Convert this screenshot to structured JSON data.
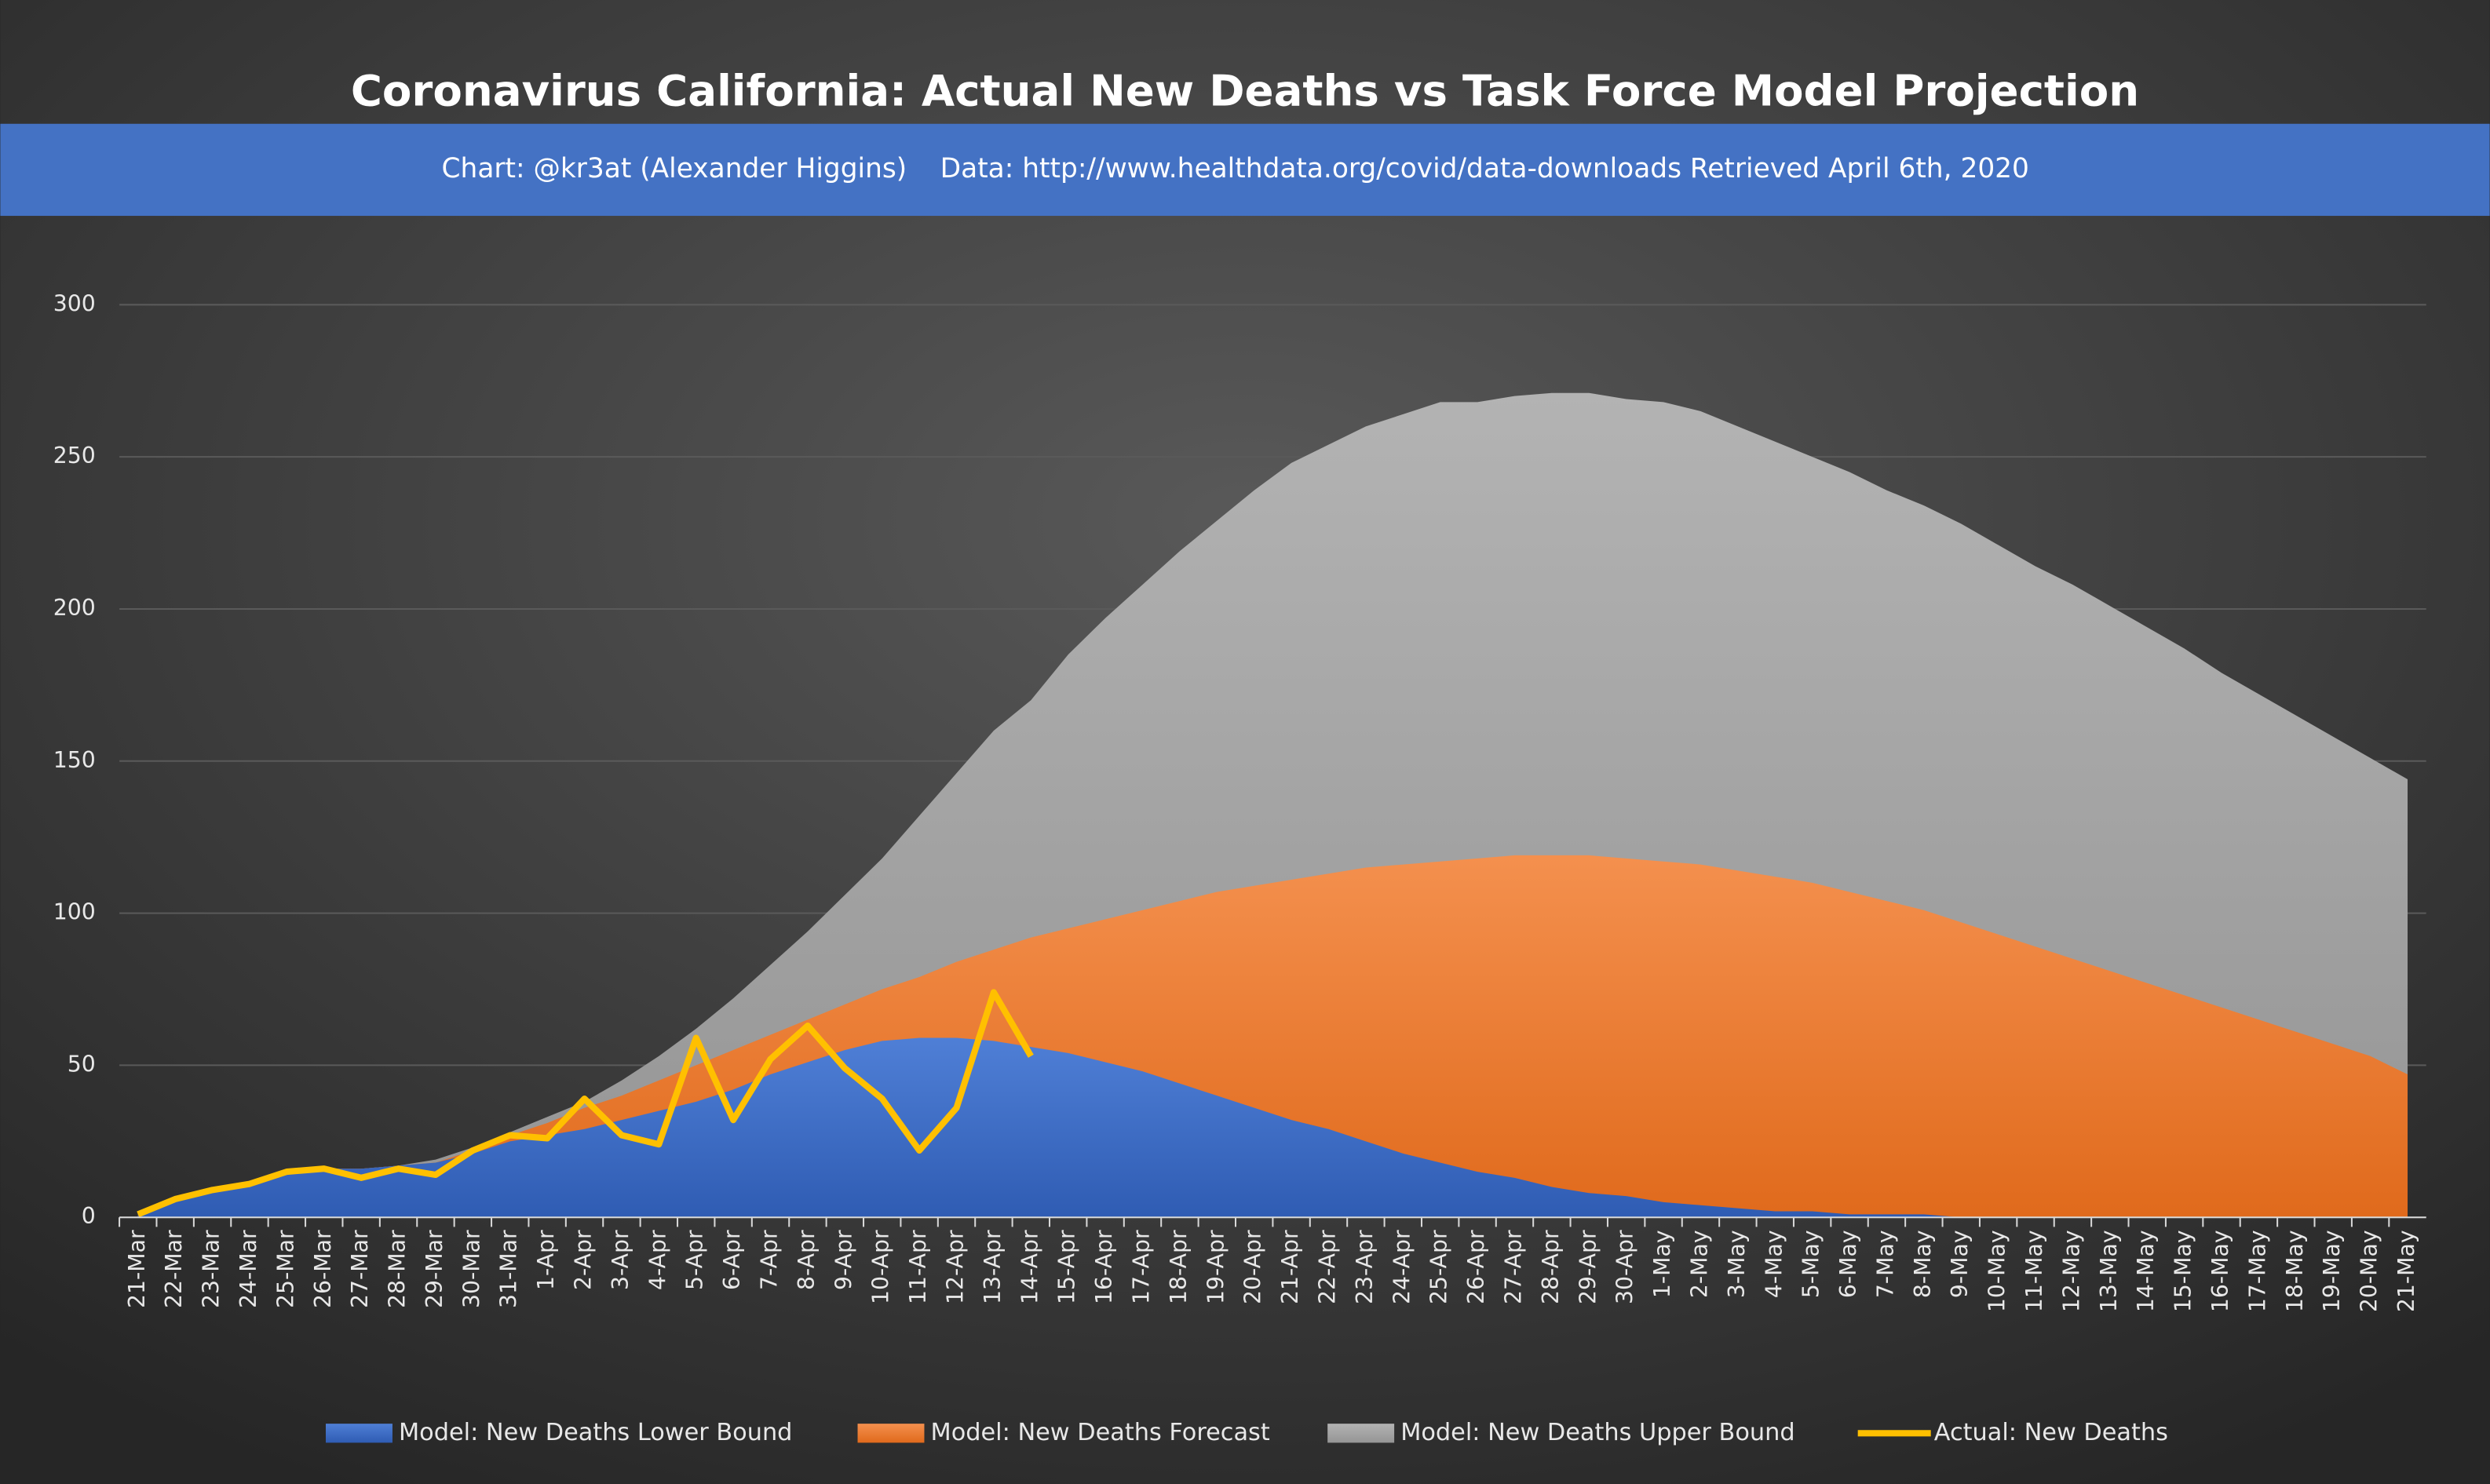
{
  "chart_data": {
    "type": "area",
    "title": "Coronavirus California: Actual New Deaths vs Task Force Model Projection",
    "subtitle": "Chart: @kr3at (Alexander Higgins)",
    "source": "Data: http://www.healthdata.org/covid/data-downloads Retrieved April 6th, 2020",
    "categories": [
      "21-Mar",
      "22-Mar",
      "23-Mar",
      "24-Mar",
      "25-Mar",
      "26-Mar",
      "27-Mar",
      "28-Mar",
      "29-Mar",
      "30-Mar",
      "31-Mar",
      "1-Apr",
      "2-Apr",
      "3-Apr",
      "4-Apr",
      "5-Apr",
      "6-Apr",
      "7-Apr",
      "8-Apr",
      "9-Apr",
      "10-Apr",
      "11-Apr",
      "12-Apr",
      "13-Apr",
      "14-Apr",
      "15-Apr",
      "16-Apr",
      "17-Apr",
      "18-Apr",
      "19-Apr",
      "20-Apr",
      "21-Apr",
      "22-Apr",
      "23-Apr",
      "24-Apr",
      "25-Apr",
      "26-Apr",
      "27-Apr",
      "28-Apr",
      "29-Apr",
      "30-Apr",
      "1-May",
      "2-May",
      "3-May",
      "4-May",
      "5-May",
      "6-May",
      "7-May",
      "8-May",
      "9-May",
      "10-May",
      "11-May",
      "12-May",
      "13-May",
      "14-May",
      "15-May",
      "16-May",
      "17-May",
      "18-May",
      "19-May",
      "20-May",
      "21-May"
    ],
    "series": [
      {
        "name": "Model: New Deaths Lower Bound",
        "color": "#4472c4",
        "kind": "area",
        "values": [
          1,
          5,
          8,
          11,
          14,
          16,
          16,
          17,
          18,
          21,
          25,
          27,
          29,
          32,
          35,
          38,
          42,
          47,
          51,
          55,
          58,
          59,
          59,
          58,
          56,
          54,
          51,
          48,
          44,
          40,
          36,
          32,
          29,
          25,
          21,
          18,
          15,
          13,
          10,
          8,
          7,
          5,
          4,
          3,
          2,
          2,
          1,
          1,
          1,
          0,
          0,
          0,
          0,
          0,
          0,
          0,
          0,
          0,
          0,
          0,
          0,
          0
        ]
      },
      {
        "name": "Model: New Deaths Forecast",
        "color": "#ed7d31",
        "kind": "area",
        "values": [
          1,
          5,
          8,
          11,
          14,
          16,
          16,
          17,
          18,
          22,
          27,
          31,
          36,
          40,
          45,
          50,
          55,
          60,
          65,
          70,
          75,
          79,
          84,
          88,
          92,
          95,
          98,
          101,
          104,
          107,
          109,
          111,
          113,
          115,
          116,
          117,
          118,
          119,
          119,
          119,
          118,
          117,
          116,
          114,
          112,
          110,
          107,
          104,
          101,
          97,
          93,
          89,
          85,
          81,
          77,
          73,
          69,
          65,
          61,
          57,
          53,
          47
        ]
      },
      {
        "name": "Model: New Deaths Upper Bound",
        "color": "#a5a5a5",
        "kind": "area",
        "values": [
          1,
          5,
          8,
          11,
          14,
          16,
          16,
          17,
          19,
          23,
          28,
          33,
          38,
          45,
          53,
          62,
          72,
          83,
          94,
          106,
          118,
          132,
          146,
          160,
          170,
          185,
          197,
          208,
          219,
          229,
          239,
          248,
          254,
          260,
          264,
          268,
          268,
          270,
          271,
          271,
          269,
          268,
          265,
          260,
          255,
          250,
          245,
          239,
          234,
          228,
          221,
          214,
          208,
          201,
          194,
          187,
          179,
          172,
          165,
          158,
          151,
          144
        ]
      },
      {
        "name": "Actual: New Deaths",
        "color": "#ffc000",
        "kind": "line",
        "values": [
          1,
          6,
          9,
          11,
          15,
          16,
          13,
          16,
          14,
          22,
          27,
          26,
          39,
          27,
          24,
          59,
          32,
          52,
          63,
          49,
          39,
          22,
          36,
          74,
          53,
          null,
          null,
          null,
          null,
          null,
          null,
          null,
          null,
          null,
          null,
          null,
          null,
          null,
          null,
          null,
          null,
          null,
          null,
          null,
          null,
          null,
          null,
          null,
          null,
          null,
          null,
          null,
          null,
          null,
          null,
          null,
          null,
          null,
          null,
          null,
          null,
          null
        ]
      }
    ],
    "ylim": [
      0,
      300
    ],
    "yticks": [
      0,
      50,
      100,
      150,
      200,
      250,
      300
    ],
    "grid": true,
    "legend": "bottom"
  }
}
